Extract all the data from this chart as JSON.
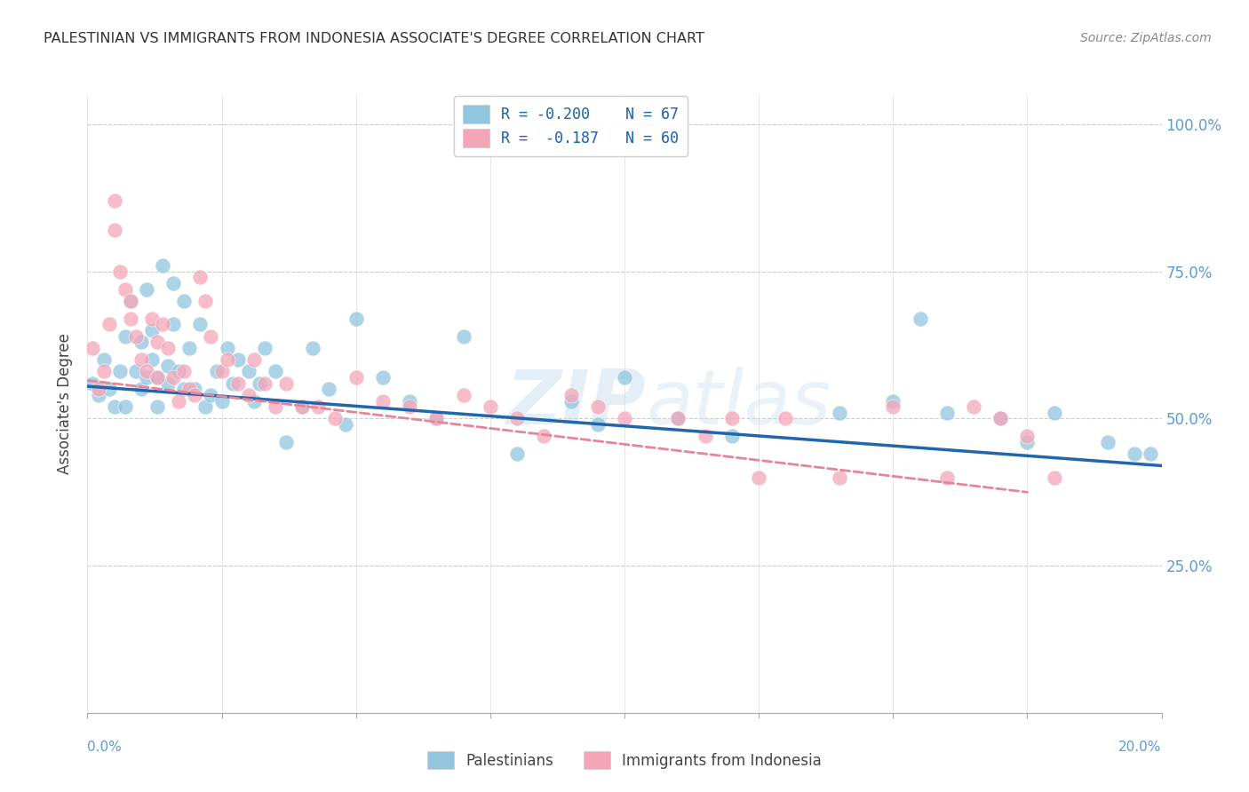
{
  "title": "PALESTINIAN VS IMMIGRANTS FROM INDONESIA ASSOCIATE'S DEGREE CORRELATION CHART",
  "source": "Source: ZipAtlas.com",
  "ylabel": "Associate's Degree",
  "xmin": 0.0,
  "xmax": 0.2,
  "ymin": 0.0,
  "ymax": 1.05,
  "yticks": [
    0.0,
    0.25,
    0.5,
    0.75,
    1.0
  ],
  "ytick_labels": [
    "",
    "25.0%",
    "50.0%",
    "75.0%",
    "100.0%"
  ],
  "watermark_zip": "ZIP",
  "watermark_atlas": "atlas",
  "legend_r1": "R = -0.200",
  "legend_n1": "N = 67",
  "legend_r2": "R =  -0.187",
  "legend_n2": "N = 60",
  "color_blue": "#92c5de",
  "color_pink": "#f4a6b8",
  "color_blue_line": "#2166ac",
  "color_pink_line": "#e8849a",
  "legend_label1": "Palestinians",
  "legend_label2": "Immigrants from Indonesia",
  "blue_x": [
    0.001,
    0.002,
    0.003,
    0.004,
    0.005,
    0.006,
    0.007,
    0.007,
    0.008,
    0.009,
    0.01,
    0.01,
    0.011,
    0.011,
    0.012,
    0.012,
    0.013,
    0.013,
    0.014,
    0.015,
    0.015,
    0.016,
    0.016,
    0.017,
    0.018,
    0.018,
    0.019,
    0.02,
    0.021,
    0.022,
    0.023,
    0.024,
    0.025,
    0.026,
    0.027,
    0.028,
    0.03,
    0.031,
    0.032,
    0.033,
    0.035,
    0.037,
    0.04,
    0.042,
    0.045,
    0.048,
    0.05,
    0.055,
    0.06,
    0.065,
    0.07,
    0.08,
    0.09,
    0.095,
    0.1,
    0.11,
    0.12,
    0.14,
    0.15,
    0.155,
    0.16,
    0.17,
    0.175,
    0.18,
    0.19,
    0.195,
    0.198
  ],
  "blue_y": [
    0.56,
    0.54,
    0.6,
    0.55,
    0.52,
    0.58,
    0.64,
    0.52,
    0.7,
    0.58,
    0.55,
    0.63,
    0.57,
    0.72,
    0.65,
    0.6,
    0.57,
    0.52,
    0.76,
    0.56,
    0.59,
    0.66,
    0.73,
    0.58,
    0.55,
    0.7,
    0.62,
    0.55,
    0.66,
    0.52,
    0.54,
    0.58,
    0.53,
    0.62,
    0.56,
    0.6,
    0.58,
    0.53,
    0.56,
    0.62,
    0.58,
    0.46,
    0.52,
    0.62,
    0.55,
    0.49,
    0.67,
    0.57,
    0.53,
    0.5,
    0.64,
    0.44,
    0.53,
    0.49,
    0.57,
    0.5,
    0.47,
    0.51,
    0.53,
    0.67,
    0.51,
    0.5,
    0.46,
    0.51,
    0.46,
    0.44,
    0.44
  ],
  "pink_x": [
    0.001,
    0.002,
    0.003,
    0.004,
    0.005,
    0.005,
    0.006,
    0.007,
    0.008,
    0.008,
    0.009,
    0.01,
    0.011,
    0.012,
    0.013,
    0.013,
    0.014,
    0.015,
    0.016,
    0.017,
    0.018,
    0.019,
    0.02,
    0.021,
    0.022,
    0.023,
    0.025,
    0.026,
    0.028,
    0.03,
    0.031,
    0.033,
    0.035,
    0.037,
    0.04,
    0.043,
    0.046,
    0.05,
    0.055,
    0.06,
    0.065,
    0.07,
    0.075,
    0.08,
    0.085,
    0.09,
    0.095,
    0.1,
    0.11,
    0.115,
    0.12,
    0.125,
    0.13,
    0.14,
    0.15,
    0.16,
    0.165,
    0.17,
    0.175,
    0.18
  ],
  "pink_y": [
    0.62,
    0.55,
    0.58,
    0.66,
    0.87,
    0.82,
    0.75,
    0.72,
    0.7,
    0.67,
    0.64,
    0.6,
    0.58,
    0.67,
    0.63,
    0.57,
    0.66,
    0.62,
    0.57,
    0.53,
    0.58,
    0.55,
    0.54,
    0.74,
    0.7,
    0.64,
    0.58,
    0.6,
    0.56,
    0.54,
    0.6,
    0.56,
    0.52,
    0.56,
    0.52,
    0.52,
    0.5,
    0.57,
    0.53,
    0.52,
    0.5,
    0.54,
    0.52,
    0.5,
    0.47,
    0.54,
    0.52,
    0.5,
    0.5,
    0.47,
    0.5,
    0.4,
    0.5,
    0.4,
    0.52,
    0.4,
    0.52,
    0.5,
    0.47,
    0.4
  ]
}
